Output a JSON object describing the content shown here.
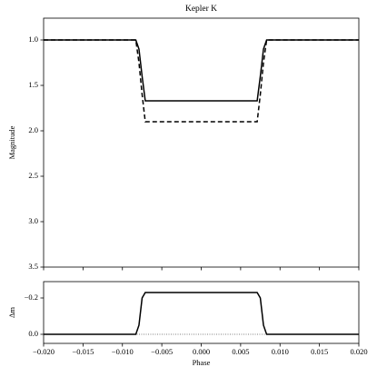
{
  "chart_data": [
    {
      "type": "line",
      "title": "Kepler K",
      "ylabel": "Magnitude",
      "invert_y": true,
      "tick_labels_x": false,
      "xlim": [
        -0.02,
        0.02
      ],
      "xticks": [
        -0.02,
        -0.015,
        -0.01,
        -0.005,
        0,
        0.005,
        0.01,
        0.015,
        0.02
      ],
      "ylim": [
        0.76,
        3.5
      ],
      "yticks": [
        {
          "value": 1,
          "label": "1.0"
        },
        {
          "value": 1.5,
          "label": "1.5"
        },
        {
          "value": 2,
          "label": "2.0"
        },
        {
          "value": 2.5,
          "label": "2.5"
        },
        {
          "value": 3,
          "label": "3.0"
        },
        {
          "value": 3.5,
          "label": "3.5"
        }
      ],
      "series": [
        {
          "color": "#000000",
          "style": "solid",
          "x": [
            -0.02,
            -0.0083,
            -0.0079,
            -0.0075,
            -0.0071,
            0.0071,
            0.0075,
            0.0079,
            0.0083,
            0.02
          ],
          "values": [
            1.0,
            1.0,
            1.1,
            1.4,
            1.67,
            1.67,
            1.4,
            1.1,
            1.0,
            1.0
          ]
        },
        {
          "color": "#000000",
          "style": "dashed",
          "x": [
            -0.02,
            -0.0083,
            -0.0079,
            -0.0075,
            -0.0071,
            0.0071,
            0.0075,
            0.0079,
            0.0083,
            0.02
          ],
          "values": [
            1.0,
            1.0,
            1.25,
            1.6,
            1.9,
            1.9,
            1.6,
            1.25,
            1.0,
            1.0
          ]
        }
      ]
    },
    {
      "type": "line",
      "xlabel": "Phase",
      "ylabel": "Δm",
      "invert_y": true,
      "tick_labels_x": true,
      "hline": 0,
      "xlim": [
        -0.02,
        0.02
      ],
      "xticks": [
        {
          "value": -0.02,
          "label": "−0.020"
        },
        {
          "value": -0.015,
          "label": "−0.015"
        },
        {
          "value": -0.01,
          "label": "−0.010"
        },
        {
          "value": -0.005,
          "label": "−0.005"
        },
        {
          "value": 0,
          "label": "0.000"
        },
        {
          "value": 0.005,
          "label": "0.005"
        },
        {
          "value": 0.01,
          "label": "0.010"
        },
        {
          "value": 0.015,
          "label": "0.015"
        },
        {
          "value": 0.02,
          "label": "0.020"
        }
      ],
      "ylim": [
        -0.29,
        0.05
      ],
      "yticks": [
        {
          "value": -0.2,
          "label": "−0.2"
        },
        {
          "value": 0,
          "label": "0.0"
        }
      ],
      "series": [
        {
          "color": "#000000",
          "style": "solid",
          "x": [
            -0.02,
            -0.0083,
            -0.0079,
            -0.0075,
            -0.0071,
            0.0071,
            0.0075,
            0.0079,
            0.0083,
            0.02
          ],
          "values": [
            0,
            0,
            -0.05,
            -0.2,
            -0.23,
            -0.23,
            -0.2,
            -0.05,
            0,
            0
          ]
        }
      ]
    }
  ]
}
